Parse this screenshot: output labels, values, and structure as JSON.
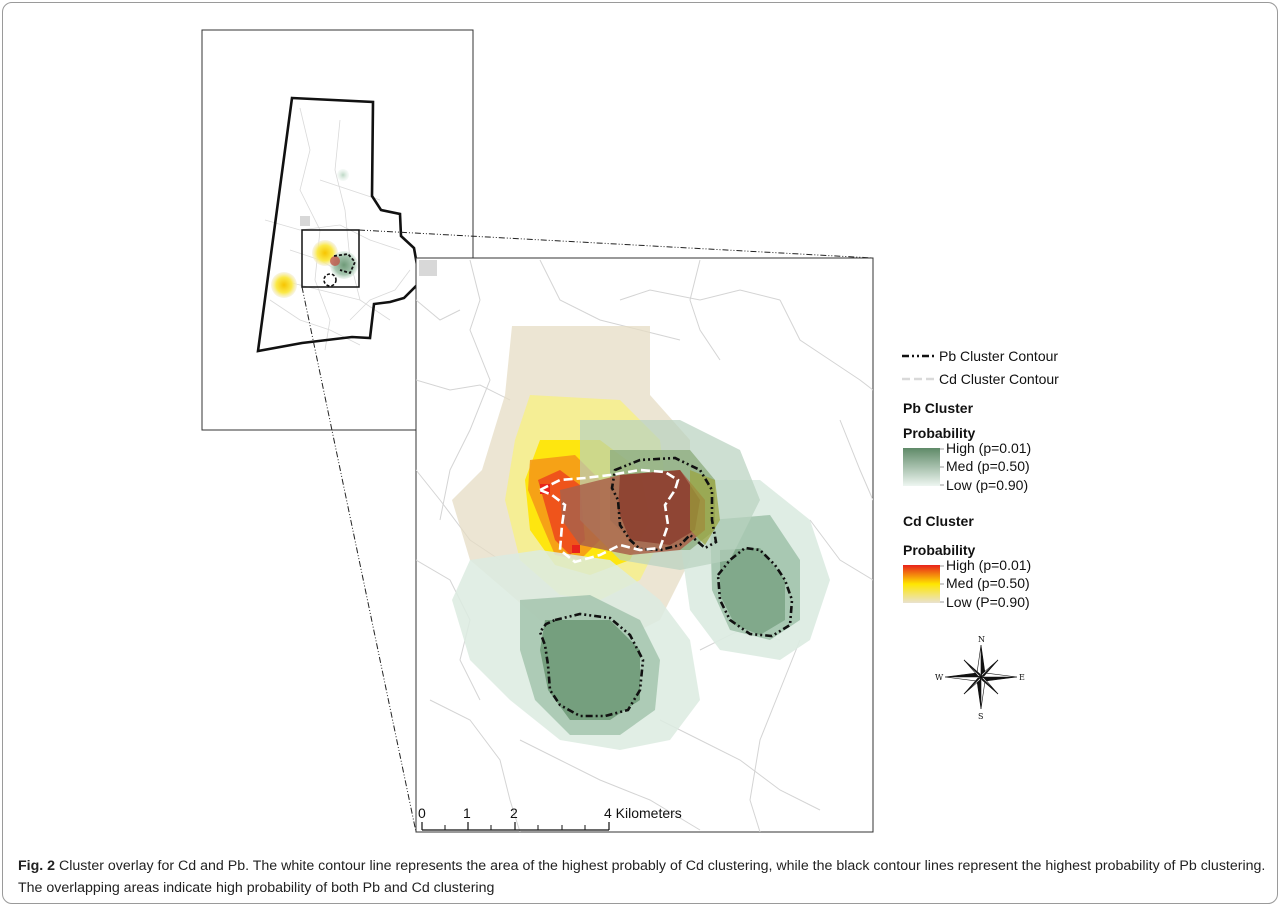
{
  "legend": {
    "pb_contour": "Pb Cluster Contour",
    "cd_contour": "Cd Cluster Contour",
    "pb_title_1": "Pb Cluster",
    "pb_title_2": "Probability",
    "pb_high": "High (p=0.01)",
    "pb_med": "Med (p=0.50)",
    "pb_low": "Low (p=0.90)",
    "cd_title_1": "Cd Cluster",
    "cd_title_2": "Probability",
    "cd_high": "High (p=0.01)",
    "cd_med": "Med (p=0.50)",
    "cd_low": "Low (P=0.90)"
  },
  "compass": {
    "n": "N",
    "s": "S",
    "e": "E",
    "w": "W"
  },
  "scalebar": {
    "labels": [
      "0",
      "1",
      "2",
      "4 Kilometers"
    ]
  },
  "caption": {
    "label": "Fig. 2",
    "text": " Cluster overlay for Cd and Pb. The white contour line represents the area of the highest probably of Cd clustering, while the black contour lines represent the highest probability of Pb clustering. The overlapping areas indicate high probability of both Pb and Cd clustering"
  },
  "colors": {
    "pb_high": "#5f8a68",
    "pb_low": "#e6f1ea",
    "cd_high": "#e8221b",
    "cd_med": "#ffe600",
    "cd_low": "#e7dfcc"
  }
}
